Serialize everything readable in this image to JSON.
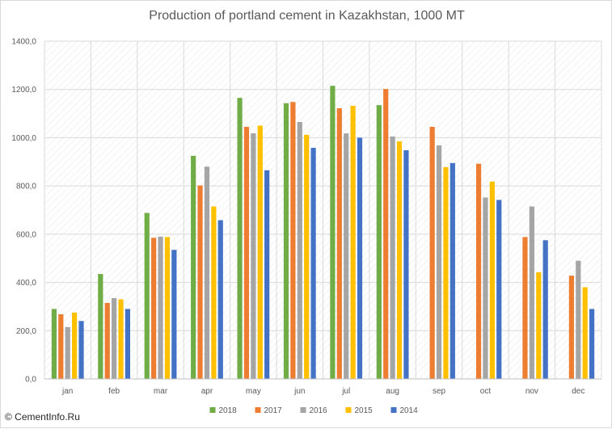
{
  "chart_data": {
    "type": "bar",
    "title": "Production of portland cement in Kazakhstan, 1000 MT",
    "xlabel": "",
    "ylabel": "",
    "ylim": [
      0,
      1400
    ],
    "yticks": [
      "0,0",
      "200,0",
      "400,0",
      "600,0",
      "800,0",
      "1000,0",
      "1200,0",
      "1400,0"
    ],
    "categories": [
      "jan",
      "feb",
      "mar",
      "apr",
      "may",
      "jun",
      "jul",
      "aug",
      "sep",
      "oct",
      "nov",
      "dec"
    ],
    "series": [
      {
        "name": "2018",
        "color": "#70ad47",
        "values": [
          290,
          435,
          688,
          925,
          1165,
          1143,
          1215,
          1135,
          null,
          null,
          null,
          null
        ]
      },
      {
        "name": "2017",
        "color": "#ed7d31",
        "values": [
          268,
          315,
          585,
          802,
          1045,
          1148,
          1122,
          1202,
          1045,
          892,
          588,
          428
        ]
      },
      {
        "name": "2016",
        "color": "#a5a5a5",
        "values": [
          215,
          335,
          590,
          880,
          1018,
          1065,
          1018,
          1005,
          968,
          752,
          715,
          490
        ]
      },
      {
        "name": "2015",
        "color": "#ffc000",
        "values": [
          275,
          330,
          588,
          715,
          1050,
          1012,
          1132,
          985,
          878,
          818,
          442,
          380
        ]
      },
      {
        "name": "2014",
        "color": "#4472c4",
        "values": [
          240,
          290,
          535,
          658,
          865,
          958,
          1000,
          948,
          895,
          742,
          575,
          290
        ]
      }
    ],
    "grid": true,
    "legend_position": "bottom"
  },
  "watermark": "© CementInfo.Ru"
}
